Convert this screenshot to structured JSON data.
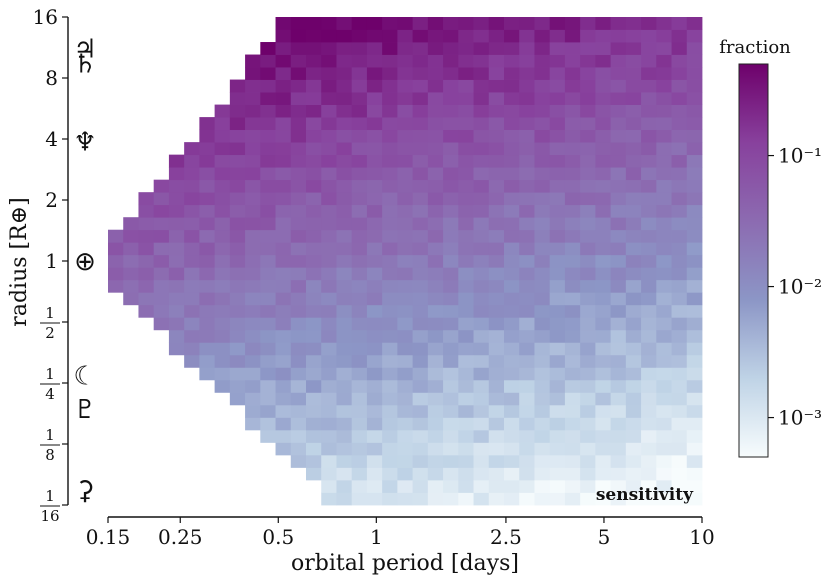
{
  "chart_data": {
    "type": "heatmap",
    "title": "",
    "xlabel": "orbital period [days]",
    "ylabel": "radius [R⊕]",
    "x_scale": "log",
    "y_scale": "log",
    "xlim": [
      0.15,
      10
    ],
    "ylim": [
      0.0625,
      16
    ],
    "x_ticks": [
      {
        "value": 0.15,
        "label": "0.15"
      },
      {
        "value": 0.25,
        "label": "0.25"
      },
      {
        "value": 0.5,
        "label": "0.5"
      },
      {
        "value": 1,
        "label": "1"
      },
      {
        "value": 2.5,
        "label": "2.5"
      },
      {
        "value": 5,
        "label": "5"
      },
      {
        "value": 10,
        "label": "10"
      }
    ],
    "y_ticks": [
      {
        "value": 16,
        "label": "16"
      },
      {
        "value": 8,
        "label": "8"
      },
      {
        "value": 4,
        "label": "4"
      },
      {
        "value": 2,
        "label": "2"
      },
      {
        "value": 1,
        "label": "1"
      },
      {
        "value": 0.5,
        "num": "1",
        "den": "2"
      },
      {
        "value": 0.25,
        "num": "1",
        "den": "4"
      },
      {
        "value": 0.125,
        "num": "1",
        "den": "8"
      },
      {
        "value": 0.0625,
        "num": "1",
        "den": "16"
      }
    ],
    "planet_markers": [
      {
        "symbol": "♃",
        "radius": 11.2
      },
      {
        "symbol": "♄",
        "radius": 9.45
      },
      {
        "symbol": "♆",
        "radius": 3.88
      },
      {
        "symbol": "⊕",
        "radius": 1.0
      },
      {
        "symbol": "☾",
        "radius": 0.273
      },
      {
        "symbol": "♇",
        "radius": 0.186
      },
      {
        "symbol": "⚳",
        "radius": 0.074
      }
    ],
    "colorbar": {
      "label": "fraction",
      "scale": "log",
      "range": [
        0.0005,
        0.5
      ],
      "ticks": [
        {
          "value": 0.1,
          "label": "10⁻¹"
        },
        {
          "value": 0.01,
          "label": "10⁻²"
        },
        {
          "value": 0.001,
          "label": "10⁻³"
        }
      ],
      "colors": [
        "#f7fcfd",
        "#bfd3e6",
        "#8c96c6",
        "#8c6bb1",
        "#88419d",
        "#6e016b"
      ]
    },
    "grid": false,
    "annotation": "sensitivity",
    "grid_bins": {
      "x_bins": 39,
      "y_bins": 39
    },
    "heatmap_model": {
      "log10_fraction_at_radius_16": -0.35,
      "log10_fraction_per_log2_radius": 0.33,
      "log10_fraction_per_log2_period": -0.12,
      "min_log10_fraction": -3.3,
      "coverage_boundary": {
        "start_period": 0.15,
        "start_radius": 1.2,
        "slope_log2_radius_per_log2_period": 2.05,
        "lower_radius_at_0_2_days": 0.5,
        "lower_radius_slope": -1.6,
        "bottom_radius": 0.066
      }
    }
  }
}
